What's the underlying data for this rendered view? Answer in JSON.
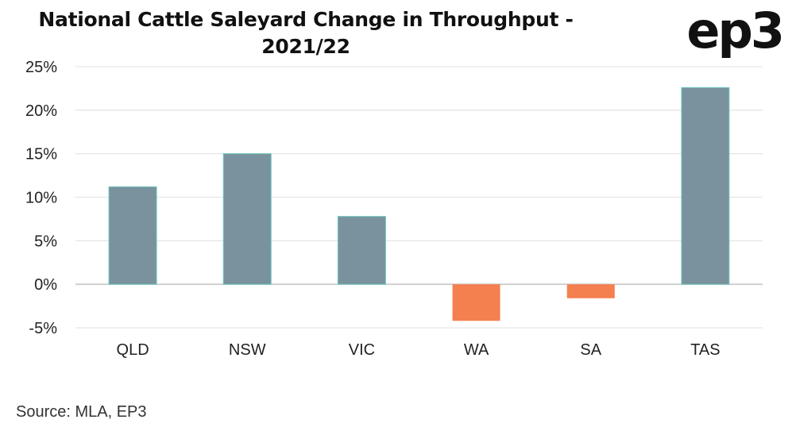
{
  "header": {
    "title_line1": "National Cattle Saleyard Change in Throughput -",
    "title_line2": "2021/22",
    "logo_text": "ep3"
  },
  "footer": {
    "source": "Source: MLA, EP3"
  },
  "chart_data": {
    "type": "bar",
    "title": "National Cattle Saleyard Change in Throughput - 2021/22",
    "xlabel": "",
    "ylabel": "",
    "categories": [
      "QLD",
      "NSW",
      "VIC",
      "WA",
      "SA",
      "TAS"
    ],
    "values": [
      11.2,
      15.0,
      7.8,
      -4.2,
      -1.6,
      22.6
    ],
    "ylim": [
      -5,
      25
    ],
    "yticks": [
      -5,
      0,
      5,
      10,
      15,
      20,
      25
    ],
    "ytick_labels": [
      "-5%",
      "0%",
      "5%",
      "10%",
      "15%",
      "20%",
      "25%"
    ],
    "grid": true,
    "colors": {
      "positive": "#7a929d",
      "negative": "#f47f4f",
      "positive_edge": "#6cc7c2",
      "grid": "#e6e6e6",
      "zero_line": "#d0d0d0"
    }
  }
}
